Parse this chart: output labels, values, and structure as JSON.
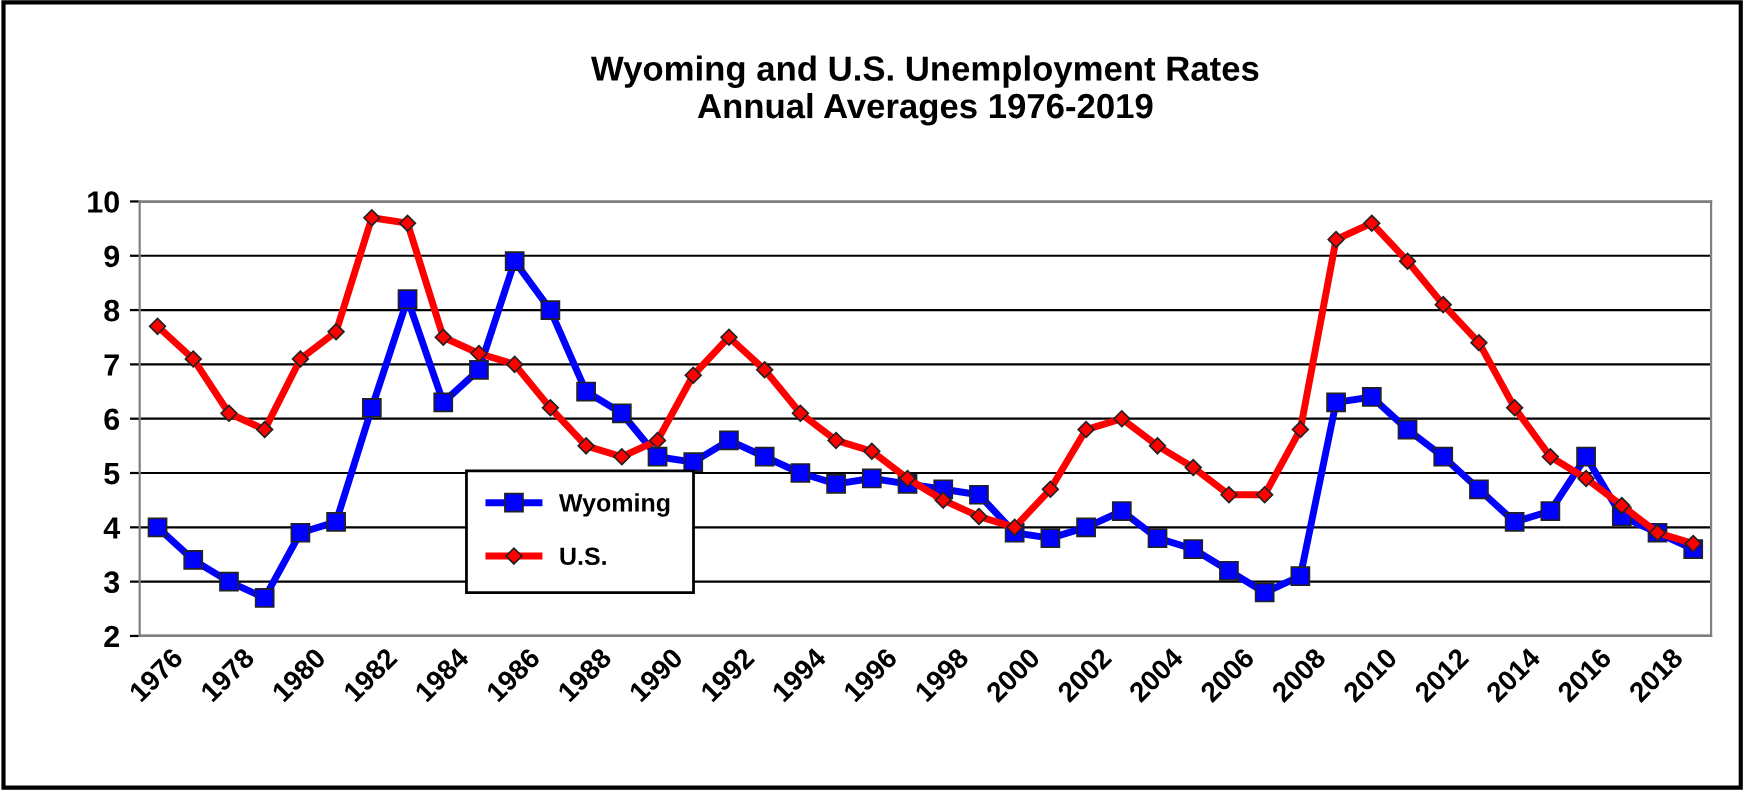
{
  "chart_data": {
    "type": "line",
    "title": "Wyoming and U.S. Unemployment Rates\nAnnual Averages 1976-2019",
    "categories": [
      "1976",
      null,
      "1978",
      null,
      "1980",
      null,
      "1982",
      null,
      "1984",
      null,
      "1986",
      null,
      "1988",
      null,
      "1990",
      null,
      "1992",
      null,
      "1994",
      null,
      "1996",
      null,
      "1998",
      null,
      "2000",
      null,
      "2002",
      null,
      "2004",
      null,
      "2006",
      null,
      "2008",
      null,
      "2010",
      null,
      "2012",
      null,
      "2014",
      null,
      "2016",
      null,
      "2018",
      null
    ],
    "series": [
      {
        "name": "Wyoming",
        "color": "#0000ff",
        "marker": "square",
        "values": [
          4.0,
          3.4,
          3.0,
          2.7,
          3.9,
          4.1,
          6.2,
          8.2,
          6.3,
          6.9,
          8.9,
          8.0,
          6.5,
          6.1,
          5.3,
          5.2,
          5.6,
          5.3,
          5.0,
          4.8,
          4.9,
          4.8,
          4.7,
          4.6,
          3.9,
          3.8,
          4.0,
          4.3,
          3.8,
          3.6,
          3.2,
          2.8,
          3.1,
          6.3,
          6.4,
          5.8,
          5.3,
          4.7,
          4.1,
          4.3,
          5.3,
          4.2,
          3.9,
          3.6
        ]
      },
      {
        "name": "U.S.",
        "color": "#ff0000",
        "marker": "diamond",
        "values": [
          7.7,
          7.1,
          6.1,
          5.8,
          7.1,
          7.6,
          9.7,
          9.6,
          7.5,
          7.2,
          7.0,
          6.2,
          5.5,
          5.3,
          5.6,
          6.8,
          7.5,
          6.9,
          6.1,
          5.6,
          5.4,
          4.9,
          4.5,
          4.2,
          4.0,
          4.7,
          5.8,
          6.0,
          5.5,
          5.1,
          4.6,
          4.6,
          5.8,
          9.3,
          9.6,
          8.9,
          8.1,
          7.4,
          6.2,
          5.3,
          4.9,
          4.4,
          3.9,
          3.7
        ]
      }
    ],
    "ylim": [
      2,
      10
    ],
    "yticks": [
      2,
      3,
      4,
      5,
      6,
      7,
      8,
      9,
      10
    ],
    "grid": "y",
    "legend": "center left"
  }
}
